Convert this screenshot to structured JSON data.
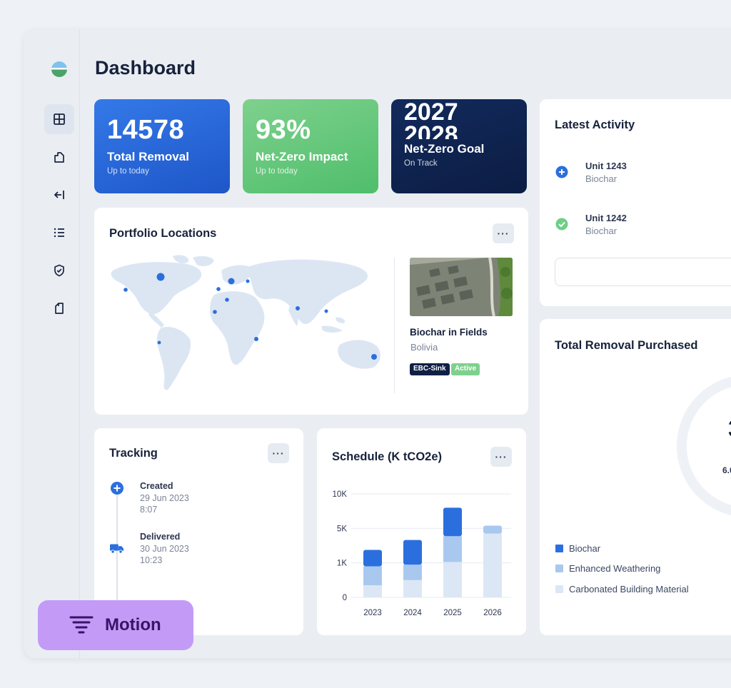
{
  "page": {
    "title": "Dashboard"
  },
  "sidebar": {
    "items": [
      {
        "name": "dashboard",
        "icon": "layout-grid-icon",
        "active": true
      },
      {
        "name": "portfolio",
        "icon": "folder-chart-icon"
      },
      {
        "name": "retire",
        "icon": "arrow-left-bar-icon"
      },
      {
        "name": "list",
        "icon": "list-icon"
      },
      {
        "name": "certificates",
        "icon": "shield-check-icon"
      },
      {
        "name": "documents",
        "icon": "document-icon"
      }
    ]
  },
  "stats": [
    {
      "value": "14578",
      "label": "Total Removal",
      "sub": "Up to today"
    },
    {
      "value": "93%",
      "label": "Net-Zero Impact",
      "sub": "Up to today"
    },
    {
      "value_prev": "2027",
      "value": "2028",
      "label": "Net-Zero Goal",
      "sub": "On Track"
    }
  ],
  "portfolio": {
    "title": "Portfolio Locations",
    "more": "···",
    "location": {
      "title": "Biochar in Fields",
      "country": "Bolivia",
      "tags": [
        "EBC-Sink",
        "Active"
      ]
    }
  },
  "tracking": {
    "title": "Tracking",
    "more": "···",
    "events": [
      {
        "title": "Created",
        "date": "29 Jun 2023",
        "time": "8:07"
      },
      {
        "title": "Delivered",
        "date": "30 Jun 2023",
        "time": "10:23"
      }
    ]
  },
  "schedule": {
    "title": "Schedule (K tCO2e)",
    "more": "···"
  },
  "activity": {
    "title": "Latest Activity",
    "items": [
      {
        "title": "Unit 1243",
        "sub": "Biochar",
        "icon": "plus-circle-icon"
      },
      {
        "title": "Unit 1242",
        "sub": "Biochar",
        "icon": "check-circle-icon"
      }
    ]
  },
  "removal": {
    "title": "Total Removal Purchased",
    "donut_value_partial": "3",
    "donut_sub_partial": "6.0",
    "legend": [
      "Biochar",
      "Enhanced Weathering",
      "Carbonated Building Material"
    ]
  },
  "colors": {
    "biochar": "#2b6fde",
    "enhanced_weathering": "#a9c8ef",
    "carbonated": "#dce7f5"
  },
  "badge": {
    "label": "Motion"
  },
  "chart_data": {
    "type": "bar",
    "stacked": true,
    "title": "Schedule (K tCO2e)",
    "categories": [
      "2023",
      "2024",
      "2025",
      "2026"
    ],
    "y_ticks": [
      "0",
      "1K",
      "5K",
      "10K"
    ],
    "series": [
      {
        "name": "Carbonated Building Material",
        "values": [
          0.35,
          0.5,
          1.1,
          4.4
        ]
      },
      {
        "name": "Enhanced Weathering",
        "values": [
          0.55,
          0.45,
          3.0,
          1.0
        ]
      },
      {
        "name": "Biochar",
        "values": [
          1.6,
          2.7,
          3.9,
          0
        ]
      }
    ],
    "grid": true
  }
}
